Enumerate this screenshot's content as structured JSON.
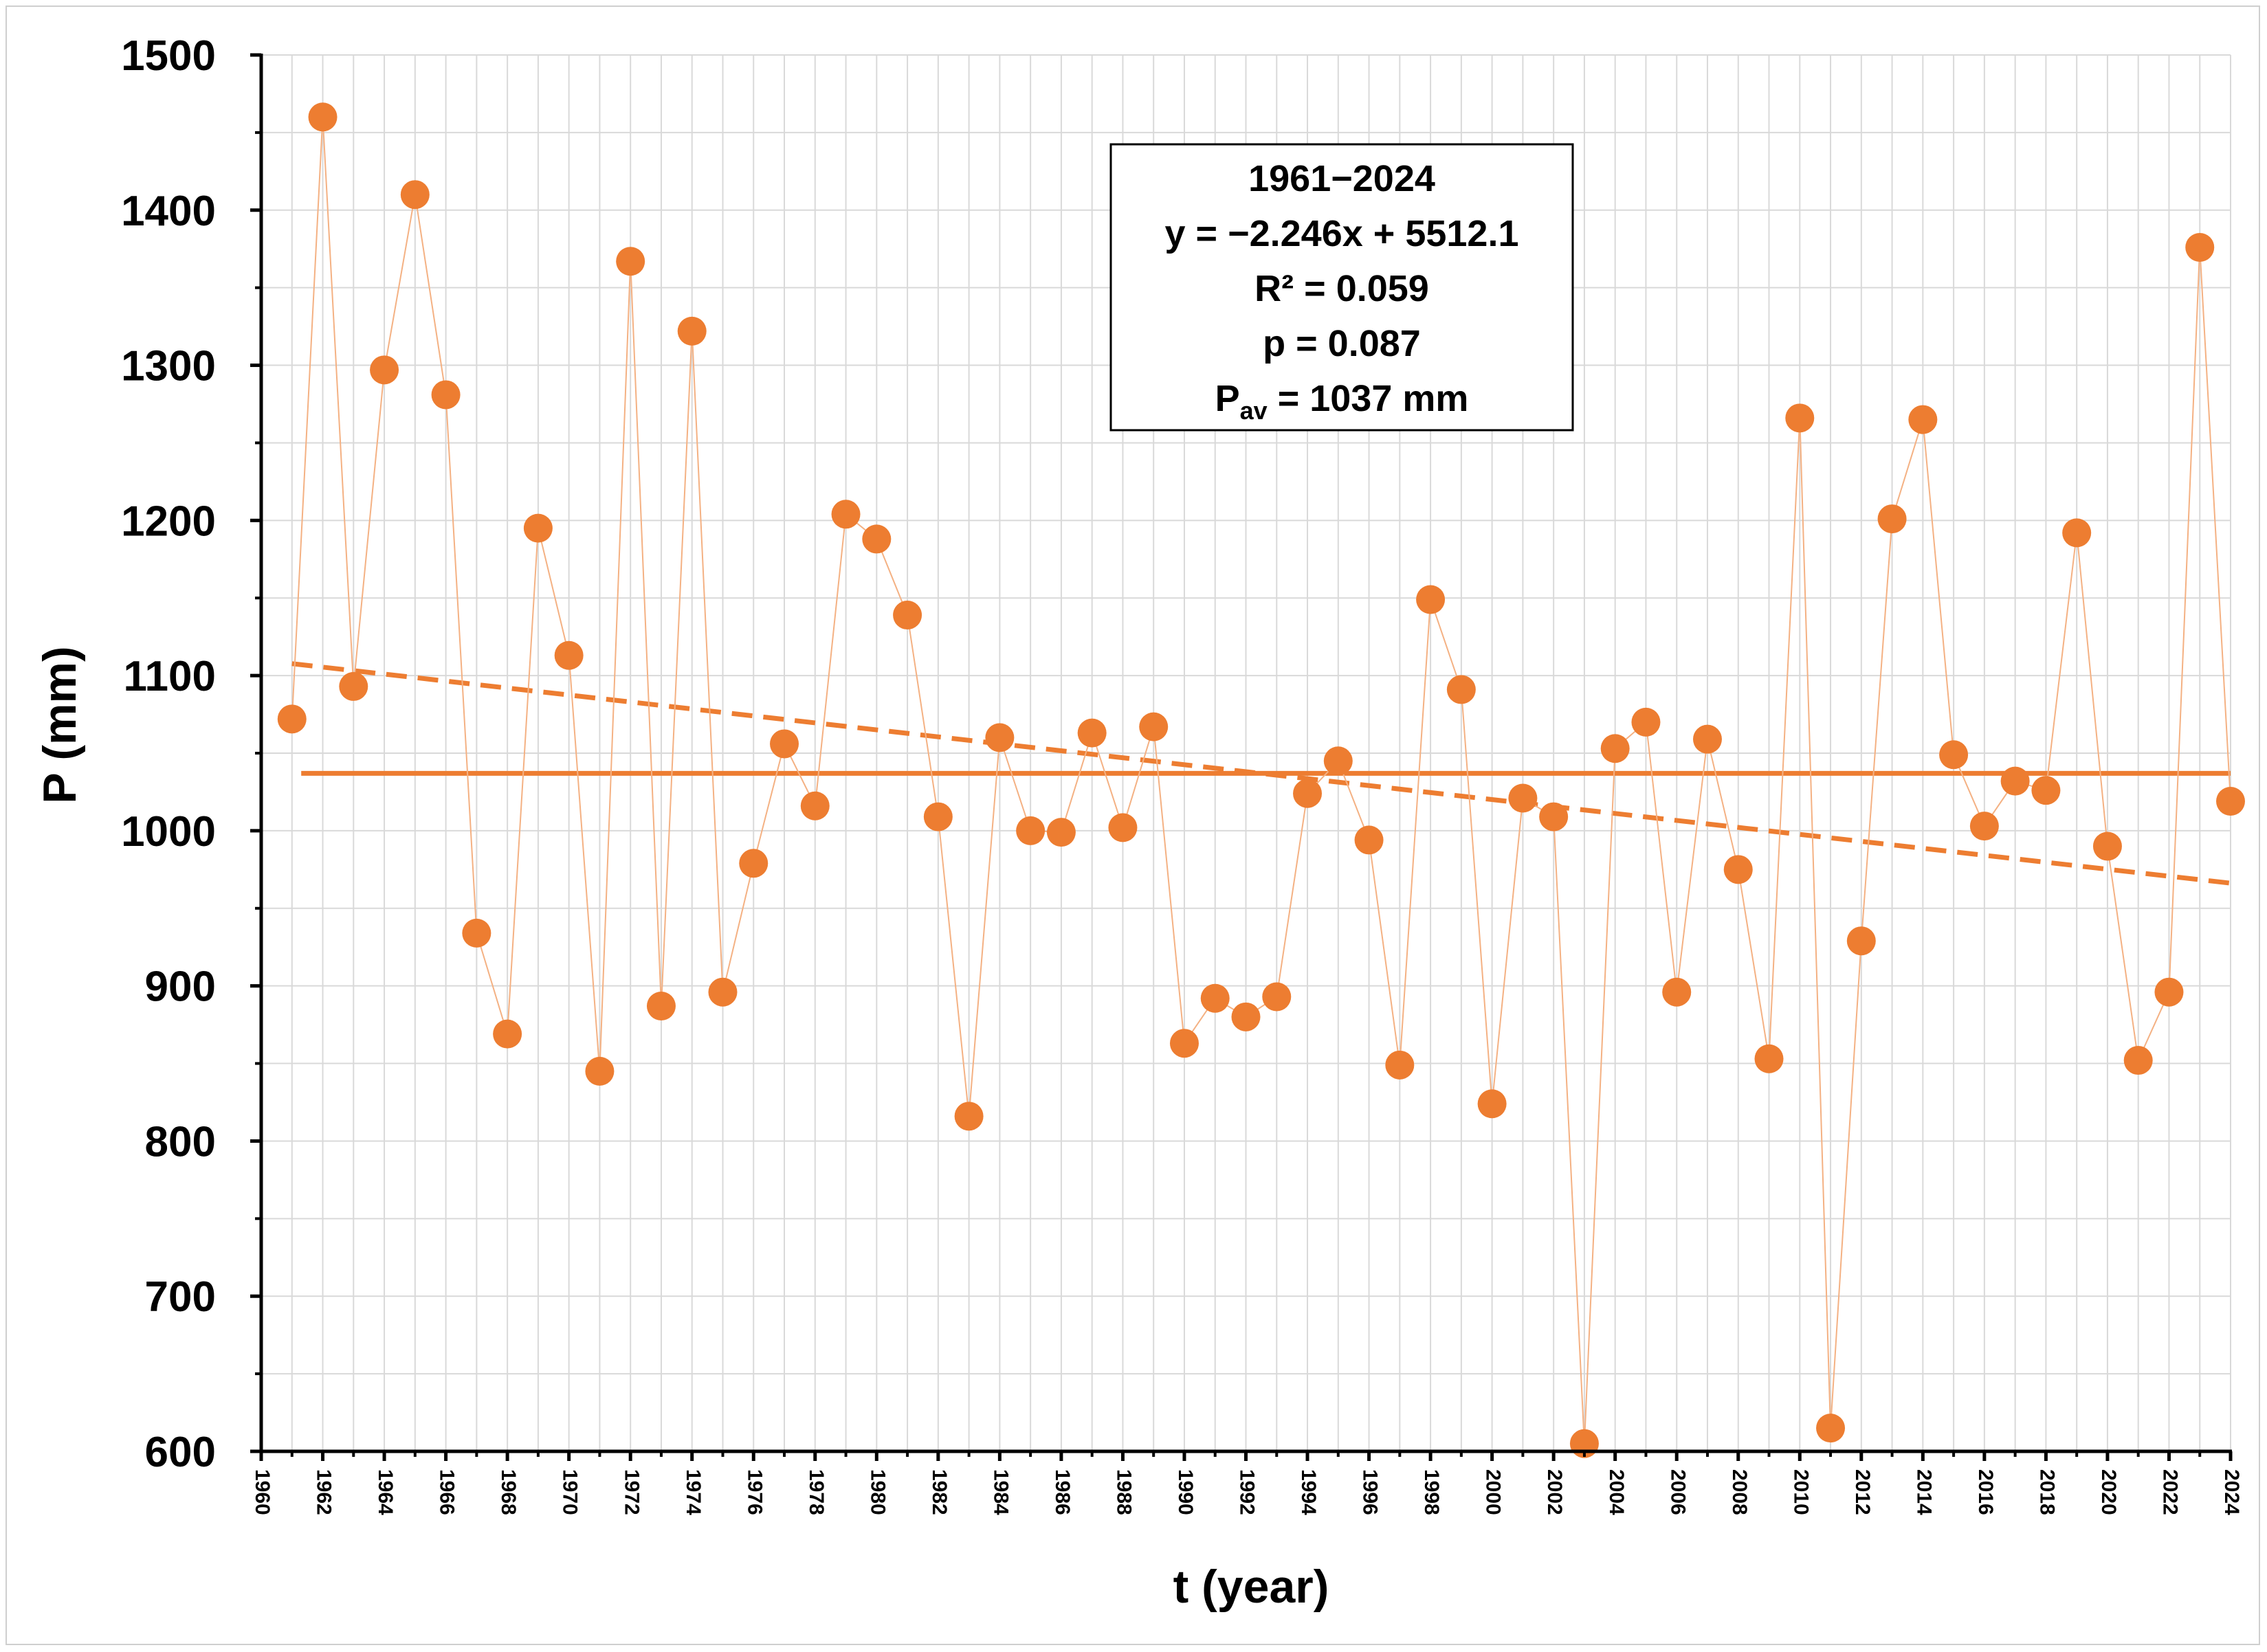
{
  "chart_data": {
    "type": "scatter",
    "title": "",
    "xlabel": "t (year)",
    "ylabel": "P (mm)",
    "xlim": [
      1960,
      2024
    ],
    "ylim": [
      600,
      1500
    ],
    "x_ticks": [
      "1960",
      "1962",
      "1964",
      "1966",
      "1968",
      "1970",
      "1972",
      "1974",
      "1976",
      "1978",
      "1980",
      "1982",
      "1984",
      "1986",
      "1988",
      "1990",
      "1992",
      "1994",
      "1996",
      "1998",
      "2000",
      "2002",
      "2004",
      "2006",
      "2008",
      "2010",
      "2012",
      "2014",
      "2016",
      "2018",
      "2020",
      "2022",
      "2024"
    ],
    "y_ticks": [
      "600",
      "700",
      "800",
      "900",
      "1000",
      "1100",
      "1200",
      "1300",
      "1400",
      "1500"
    ],
    "grid": true,
    "colors": {
      "series": "#ED7D31",
      "connector": "#F4B183",
      "grid": "#d9d9d9",
      "axis": "#000000"
    },
    "series": [
      {
        "name": "P",
        "x": [
          1961,
          1962,
          1963,
          1964,
          1965,
          1966,
          1967,
          1968,
          1969,
          1970,
          1971,
          1972,
          1973,
          1974,
          1975,
          1976,
          1977,
          1978,
          1979,
          1980,
          1981,
          1982,
          1983,
          1984,
          1985,
          1986,
          1987,
          1988,
          1989,
          1990,
          1991,
          1992,
          1993,
          1994,
          1995,
          1996,
          1997,
          1998,
          1999,
          2000,
          2001,
          2002,
          2003,
          2004,
          2005,
          2006,
          2007,
          2008,
          2009,
          2010,
          2011,
          2012,
          2013,
          2014,
          2015,
          2016,
          2017,
          2018,
          2019,
          2020,
          2021,
          2022,
          2023,
          2024
        ],
        "values": [
          1072,
          1460,
          1093,
          1297,
          1410,
          1281,
          934,
          869,
          1195,
          1113,
          845,
          1367,
          887,
          1322,
          896,
          979,
          1056,
          1016,
          1204,
          1188,
          1139,
          1009,
          816,
          1060,
          1000,
          999,
          1063,
          1002,
          1067,
          863,
          892,
          880,
          893,
          1024,
          1045,
          994,
          849,
          1149,
          1091,
          824,
          1021,
          1009,
          605,
          1053,
          1070,
          896,
          1059,
          975,
          853,
          1266,
          615,
          929,
          1201,
          1265,
          1049,
          1003,
          1032,
          1026,
          1192,
          990,
          852,
          896,
          1376,
          1019
        ]
      }
    ],
    "trend_line": {
      "slope": -2.246,
      "intercept": 5512.1,
      "style": "dashed"
    },
    "average_line": {
      "value": 1037,
      "style": "solid"
    },
    "annotation": {
      "line1": "1961−2024",
      "line2": "y = −2.246x + 5512.1",
      "line3": "R² = 0.059",
      "line4": "p = 0.087",
      "line5_prefix": "P",
      "line5_sub": "av",
      "line5_suffix": " = 1037 mm"
    }
  }
}
